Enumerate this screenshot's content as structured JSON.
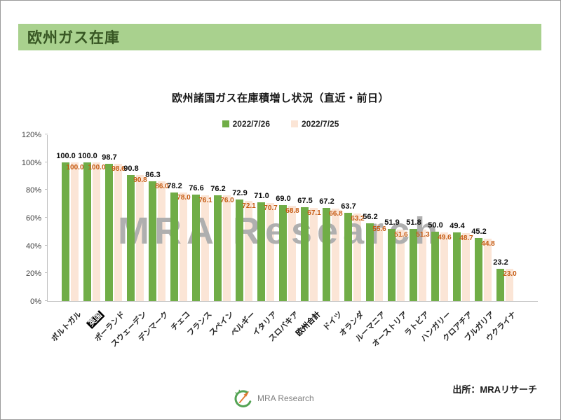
{
  "slide": {
    "header_title": "欧州ガス在庫",
    "watermark": "MRA Research",
    "source_note": "出所：MRAリサーチ",
    "logo_text": "MRA Research"
  },
  "colors": {
    "header_bg": "#A9D18E",
    "header_text": "#375623",
    "series_green": "#70AD47",
    "series_peach": "#FBE5D6",
    "value_label_black": "#0d0d0d",
    "value_label_orange": "#C55A11",
    "watermark_gray": "#AFAFAF",
    "axis_gray": "#BFBFBF"
  },
  "chart_data": {
    "type": "bar",
    "title": "欧州諸国ガス在庫積増し状況（直近・前日）",
    "categories": [
      "ポルトガル",
      "英国",
      "ポーランド",
      "スウェーデン",
      "デンマーク",
      "チェコ",
      "フランス",
      "スペイン",
      "ベルギー",
      "イタリア",
      "スロバキア",
      "欧州合計",
      "ドイツ",
      "オランダ",
      "ルーマニア",
      "オーストリア",
      "ラトビア",
      "ハンガリー",
      "クロアチア",
      "ブルガリア",
      "ウクライナ"
    ],
    "series": [
      {
        "name": "2022/7/26",
        "color": "#70AD47",
        "values": [
          100.0,
          100.0,
          98.7,
          90.8,
          86.3,
          78.2,
          76.6,
          76.2,
          72.9,
          71.0,
          69.0,
          67.5,
          67.2,
          63.7,
          56.2,
          51.9,
          51.8,
          50.0,
          49.4,
          45.2,
          23.2
        ]
      },
      {
        "name": "2022/7/25",
        "color": "#FBE5D6",
        "values": [
          100.0,
          100.0,
          98.6,
          90.8,
          86.0,
          78.0,
          76.1,
          76.0,
          72.1,
          70.7,
          68.8,
          67.1,
          66.8,
          63.2,
          55.6,
          51.6,
          51.3,
          49.6,
          48.7,
          44.8,
          23.0
        ]
      }
    ],
    "ylim": [
      0,
      120
    ],
    "yticks": [
      0,
      20,
      40,
      60,
      80,
      100,
      120
    ],
    "ytick_suffix": "%",
    "grid": false,
    "legend_position": "top-center",
    "highlighted_category": "英国",
    "bold_category": "欧州合計",
    "value_labels_shown": true
  }
}
